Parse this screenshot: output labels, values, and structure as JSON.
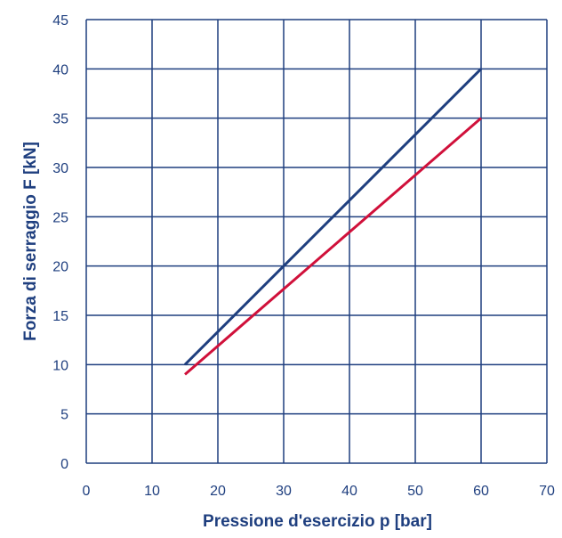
{
  "chart_data": {
    "type": "line",
    "title": "",
    "xlabel": "Pressione d'esercizio p [bar]",
    "ylabel": "Forza di serraggio F [kN]",
    "xlim": [
      0,
      70
    ],
    "ylim": [
      0,
      45
    ],
    "xticks": [
      0,
      10,
      20,
      30,
      40,
      50,
      60,
      70
    ],
    "yticks": [
      0,
      5,
      10,
      15,
      20,
      25,
      30,
      35,
      40,
      45
    ],
    "grid": true,
    "legend": "none",
    "series": [
      {
        "color": "#1f3f7f",
        "x": [
          15,
          60
        ],
        "y": [
          10,
          40
        ]
      },
      {
        "color": "#d0103a",
        "x": [
          15,
          60
        ],
        "y": [
          9,
          35
        ]
      }
    ]
  }
}
